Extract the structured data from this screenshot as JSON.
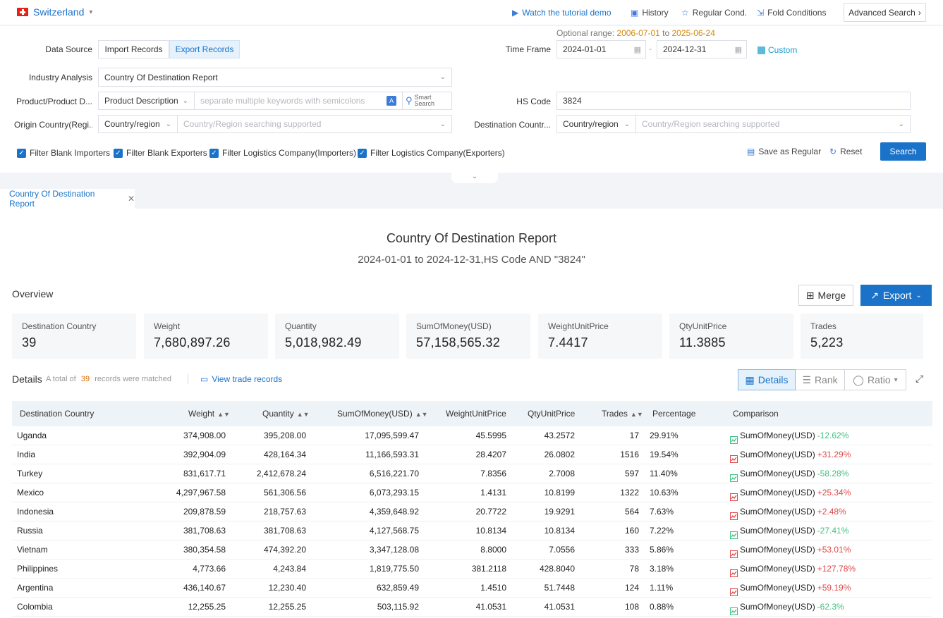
{
  "topbar": {
    "country": "Switzerland",
    "tutorial": "Watch the tutorial demo",
    "history": "History",
    "regular": "Regular Cond.",
    "fold": "Fold Conditions",
    "advanced": "Advanced Search"
  },
  "form": {
    "data_source_label": "Data Source",
    "import_records": "Import Records",
    "export_records": "Export Records",
    "optional_range_label": "Optional range:",
    "optional_range_from": "2006-07-01",
    "optional_range_to_word": "to",
    "optional_range_to": "2025-06-24",
    "time_frame_label": "Time Frame",
    "date_from": "2024-01-01",
    "date_to": "2024-12-31",
    "date_sep": "-",
    "custom": "Custom",
    "industry_label": "Industry Analysis",
    "industry_value": "Country Of Destination Report",
    "product_label": "Product/Product D...",
    "product_type": "Product Description",
    "keyword_placeholder": "separate multiple keywords with semicolons",
    "smart_search_1": "Smart",
    "smart_search_2": "Search",
    "hs_label": "HS Code",
    "hs_value": "3824",
    "origin_label": "Origin Country(Regi...",
    "origin_type": "Country/region",
    "origin_placeholder": "Country/Region searching supported",
    "dest_label": "Destination Countr...",
    "dest_type": "Country/region",
    "dest_placeholder": "Country/Region searching supported",
    "filters": [
      "Filter Blank Importers",
      "Filter Blank Exporters",
      "Filter Logistics Company(Importers)",
      "Filter Logistics Company(Exporters)"
    ],
    "save_regular": "Save as Regular",
    "reset": "Reset",
    "search": "Search"
  },
  "tab": {
    "label": "Country Of Destination Report"
  },
  "report": {
    "title": "Country Of Destination Report",
    "subtitle": "2024-01-01 to 2024-12-31,HS Code AND \"3824\"",
    "overview": "Overview",
    "merge": "Merge",
    "export": "Export",
    "cards": [
      {
        "title": "Destination Country",
        "value": "39"
      },
      {
        "title": "Weight",
        "value": "7,680,897.26"
      },
      {
        "title": "Quantity",
        "value": "5,018,982.49"
      },
      {
        "title": "SumOfMoney(USD)",
        "value": "57,158,565.32"
      },
      {
        "title": "WeightUnitPrice",
        "value": "7.4417"
      },
      {
        "title": "QtyUnitPrice",
        "value": "11.3885"
      },
      {
        "title": "Trades",
        "value": "5,223"
      }
    ],
    "details": "Details",
    "total_prefix": "A total of",
    "total_count": "39",
    "total_suffix": "records were matched",
    "view_trade": "View trade records",
    "views": [
      "Details",
      "Rank",
      "Ratio"
    ]
  },
  "table": {
    "headers": [
      "Destination Country",
      "Weight",
      "Quantity",
      "SumOfMoney(USD)",
      "WeightUnitPrice",
      "QtyUnitPrice",
      "Trades",
      "Percentage",
      "Comparison"
    ],
    "rows": [
      {
        "country": "Uganda",
        "weight": "374,908.00",
        "quantity": "395,208.00",
        "money": "17,095,599.47",
        "wup": "45.5995",
        "qup": "43.2572",
        "trades": "17",
        "pct": "29.91%",
        "cmp_label": "SumOfMoney(USD)",
        "cmp": "-12.62%",
        "dir": "down"
      },
      {
        "country": "India",
        "weight": "392,904.09",
        "quantity": "428,164.34",
        "money": "11,166,593.31",
        "wup": "28.4207",
        "qup": "26.0802",
        "trades": "1516",
        "pct": "19.54%",
        "cmp_label": "SumOfMoney(USD)",
        "cmp": "+31.29%",
        "dir": "up"
      },
      {
        "country": "Turkey",
        "weight": "831,617.71",
        "quantity": "2,412,678.24",
        "money": "6,516,221.70",
        "wup": "7.8356",
        "qup": "2.7008",
        "trades": "597",
        "pct": "11.40%",
        "cmp_label": "SumOfMoney(USD)",
        "cmp": "-58.28%",
        "dir": "down"
      },
      {
        "country": "Mexico",
        "weight": "4,297,967.58",
        "quantity": "561,306.56",
        "money": "6,073,293.15",
        "wup": "1.4131",
        "qup": "10.8199",
        "trades": "1322",
        "pct": "10.63%",
        "cmp_label": "SumOfMoney(USD)",
        "cmp": "+25.34%",
        "dir": "up"
      },
      {
        "country": "Indonesia",
        "weight": "209,878.59",
        "quantity": "218,757.63",
        "money": "4,359,648.92",
        "wup": "20.7722",
        "qup": "19.9291",
        "trades": "564",
        "pct": "7.63%",
        "cmp_label": "SumOfMoney(USD)",
        "cmp": "+2.48%",
        "dir": "up"
      },
      {
        "country": "Russia",
        "weight": "381,708.63",
        "quantity": "381,708.63",
        "money": "4,127,568.75",
        "wup": "10.8134",
        "qup": "10.8134",
        "trades": "160",
        "pct": "7.22%",
        "cmp_label": "SumOfMoney(USD)",
        "cmp": "-27.41%",
        "dir": "down"
      },
      {
        "country": "Vietnam",
        "weight": "380,354.58",
        "quantity": "474,392.20",
        "money": "3,347,128.08",
        "wup": "8.8000",
        "qup": "7.0556",
        "trades": "333",
        "pct": "5.86%",
        "cmp_label": "SumOfMoney(USD)",
        "cmp": "+53.01%",
        "dir": "up"
      },
      {
        "country": "Philippines",
        "weight": "4,773.66",
        "quantity": "4,243.84",
        "money": "1,819,775.50",
        "wup": "381.2118",
        "qup": "428.8040",
        "trades": "78",
        "pct": "3.18%",
        "cmp_label": "SumOfMoney(USD)",
        "cmp": "+127.78%",
        "dir": "up"
      },
      {
        "country": "Argentina",
        "weight": "436,140.67",
        "quantity": "12,230.40",
        "money": "632,859.49",
        "wup": "1.4510",
        "qup": "51.7448",
        "trades": "124",
        "pct": "1.11%",
        "cmp_label": "SumOfMoney(USD)",
        "cmp": "+59.19%",
        "dir": "up"
      },
      {
        "country": "Colombia",
        "weight": "12,255.25",
        "quantity": "12,255.25",
        "money": "503,115.92",
        "wup": "41.0531",
        "qup": "41.0531",
        "trades": "108",
        "pct": "0.88%",
        "cmp_label": "SumOfMoney(USD)",
        "cmp": "-62.3%",
        "dir": "down"
      }
    ]
  },
  "colors": {
    "accent": "#1a73c9",
    "up": "#e04848",
    "down": "#3fbf7f",
    "range_date": "#d48806"
  }
}
